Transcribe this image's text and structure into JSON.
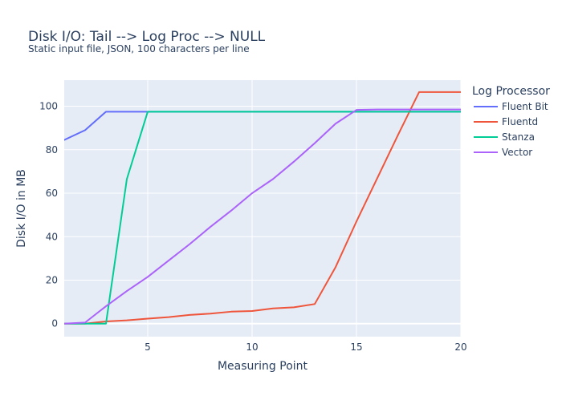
{
  "chart_data": {
    "type": "line",
    "title": "Disk I/O: Tail --> Log Proc --> NULL",
    "subtitle": "Static input file, JSON, 100 characters per line",
    "xlabel": "Measuring Point",
    "ylabel": "Disk I/O in MB",
    "xlim": [
      1,
      20
    ],
    "ylim": [
      -6,
      112
    ],
    "xticks": [
      5,
      10,
      15,
      20
    ],
    "yticks": [
      0,
      20,
      40,
      60,
      80,
      100
    ],
    "grid": true,
    "legend": {
      "title": "Log Processor",
      "placement": "right"
    },
    "x": [
      1,
      2,
      3,
      4,
      5,
      6,
      7,
      8,
      9,
      10,
      11,
      12,
      13,
      14,
      15,
      16,
      17,
      18,
      19,
      20
    ],
    "series": [
      {
        "name": "Fluent Bit",
        "color": "#636efa",
        "values": [
          84.5,
          89,
          97.5,
          97.5,
          97.5,
          97.5,
          97.5,
          97.5,
          97.5,
          97.5,
          97.5,
          97.5,
          97.5,
          97.5,
          97.5,
          97.5,
          97.5,
          97.5,
          97.5,
          97.5
        ]
      },
      {
        "name": "Fluentd",
        "color": "#ef553b",
        "values": [
          0,
          0,
          1,
          1.5,
          2.3,
          3,
          4,
          4.6,
          5.5,
          5.8,
          7,
          7.5,
          9,
          26,
          47,
          67,
          87,
          106.5,
          106.5,
          106.5
        ]
      },
      {
        "name": "Stanza",
        "color": "#00cc96",
        "values": [
          0,
          0,
          0,
          66.5,
          97.5,
          97.5,
          97.5,
          97.5,
          97.5,
          97.5,
          97.5,
          97.5,
          97.5,
          97.5,
          97.5,
          97.5,
          97.5,
          97.5,
          97.5,
          97.5
        ]
      },
      {
        "name": "Vector",
        "color": "#ab63fa",
        "values": [
          0,
          0.5,
          8,
          15,
          21.5,
          29,
          36.5,
          44.5,
          52,
          60,
          66.5,
          74.5,
          83,
          92,
          98.3,
          98.5,
          98.5,
          98.5,
          98.5,
          98.5
        ]
      }
    ]
  }
}
